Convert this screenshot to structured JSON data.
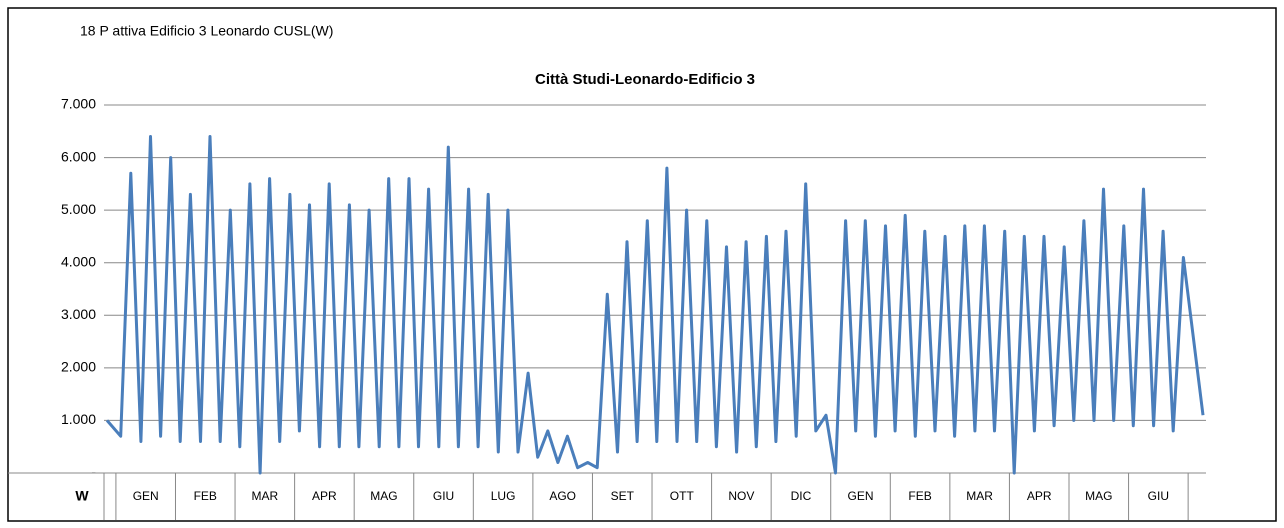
{
  "chart_data": {
    "type": "line",
    "heading": "18 P attiva Edificio 3 Leonardo CUSL(W)",
    "title": "Città Studi-Leonardo-Edificio 3",
    "y_label": "W",
    "x": [
      -0.15,
      0.08,
      0.25,
      0.42,
      0.58,
      0.75,
      0.92,
      1.08,
      1.25,
      1.42,
      1.58,
      1.75,
      1.92,
      2.08,
      2.25,
      2.42,
      2.58,
      2.75,
      2.92,
      3.08,
      3.25,
      3.42,
      3.58,
      3.75,
      3.92,
      4.08,
      4.25,
      4.42,
      4.58,
      4.75,
      4.92,
      5.08,
      5.25,
      5.42,
      5.58,
      5.75,
      5.92,
      6.08,
      6.25,
      6.42,
      6.58,
      6.75,
      6.92,
      7.08,
      7.25,
      7.42,
      7.58,
      7.75,
      7.92,
      8.08,
      8.25,
      8.42,
      8.58,
      8.75,
      8.92,
      9.08,
      9.25,
      9.42,
      9.58,
      9.75,
      9.92,
      10.08,
      10.25,
      10.42,
      10.58,
      10.75,
      10.92,
      11.08,
      11.25,
      11.42,
      11.58,
      11.75,
      11.92,
      12.08,
      12.25,
      12.42,
      12.58,
      12.75,
      12.92,
      13.08,
      13.25,
      13.42,
      13.58,
      13.75,
      13.92,
      14.08,
      14.25,
      14.42,
      14.58,
      14.75,
      14.92,
      15.08,
      15.25,
      15.42,
      15.58,
      15.75,
      15.92,
      16.08,
      16.25,
      16.42,
      16.58,
      16.75,
      16.92,
      17.08,
      17.25,
      17.42,
      17.58,
      17.75,
      17.92,
      18.25
    ],
    "series": [
      {
        "name": "P attiva",
        "color": "#4a7ebb",
        "values": [
          1000,
          700,
          5700,
          600,
          6400,
          700,
          6000,
          600,
          5300,
          600,
          6400,
          600,
          5000,
          500,
          5500,
          0,
          5600,
          600,
          5300,
          800,
          5100,
          500,
          5500,
          500,
          5100,
          500,
          5000,
          500,
          5600,
          500,
          5600,
          500,
          5400,
          500,
          6200,
          500,
          5400,
          500,
          5300,
          400,
          5000,
          400,
          1900,
          300,
          800,
          200,
          700,
          100,
          200,
          100,
          3400,
          400,
          4400,
          600,
          4800,
          600,
          5800,
          600,
          5000,
          600,
          4800,
          500,
          4300,
          400,
          4400,
          500,
          4500,
          600,
          4600,
          700,
          5500,
          800,
          1100,
          0,
          4800,
          800,
          4800,
          700,
          4700,
          800,
          4900,
          700,
          4600,
          800,
          4500,
          700,
          4700,
          800,
          4700,
          800,
          4600,
          0,
          4500,
          800,
          4500,
          900,
          4300,
          1000,
          4800,
          1000,
          5400,
          1000,
          4700,
          900,
          5400,
          900,
          4600,
          800,
          4100,
          1100
        ]
      }
    ],
    "xlim": [
      -0.2,
      18.3
    ],
    "xticks": [
      {
        "value": 0.5,
        "label": "GEN"
      },
      {
        "value": 1.5,
        "label": "FEB"
      },
      {
        "value": 2.5,
        "label": "MAR"
      },
      {
        "value": 3.5,
        "label": "APR"
      },
      {
        "value": 4.5,
        "label": "MAG"
      },
      {
        "value": 5.5,
        "label": "GIU"
      },
      {
        "value": 6.5,
        "label": "LUG"
      },
      {
        "value": 7.5,
        "label": "AGO"
      },
      {
        "value": 8.5,
        "label": "SET"
      },
      {
        "value": 9.5,
        "label": "OTT"
      },
      {
        "value": 10.5,
        "label": "NOV"
      },
      {
        "value": 11.5,
        "label": "DIC"
      },
      {
        "value": 12.5,
        "label": "GEN"
      },
      {
        "value": 13.5,
        "label": "FEB"
      },
      {
        "value": 14.5,
        "label": "MAR"
      },
      {
        "value": 15.5,
        "label": "APR"
      },
      {
        "value": 16.5,
        "label": "MAG"
      },
      {
        "value": 17.5,
        "label": "GIU"
      }
    ],
    "ylim": [
      0,
      7000
    ],
    "yticks": [
      {
        "value": 0,
        "label": "-"
      },
      {
        "value": 1000,
        "label": "1.000"
      },
      {
        "value": 2000,
        "label": "2.000"
      },
      {
        "value": 3000,
        "label": "3.000"
      },
      {
        "value": 4000,
        "label": "4.000"
      },
      {
        "value": 5000,
        "label": "5.000"
      },
      {
        "value": 6000,
        "label": "6.000"
      },
      {
        "value": 7000,
        "label": "7.000"
      }
    ],
    "grid": true
  }
}
